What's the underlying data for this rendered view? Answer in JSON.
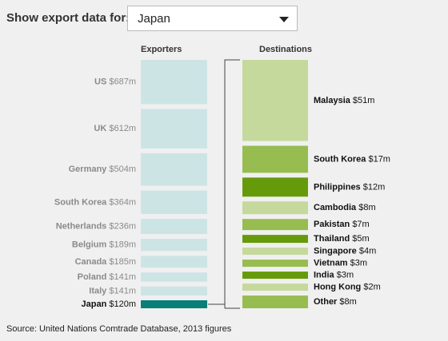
{
  "control": {
    "label": "Show export data for:",
    "selected": "Japan"
  },
  "chart_data": {
    "type": "bar",
    "exporters_label": "Exporters",
    "destinations_label": "Destinations",
    "selected_exporter": "Japan",
    "exporters": [
      {
        "name": "US",
        "value_label": "$687m",
        "value": 687
      },
      {
        "name": "UK",
        "value_label": "$612m",
        "value": 612
      },
      {
        "name": "Germany",
        "value_label": "$504m",
        "value": 504
      },
      {
        "name": "South Korea",
        "value_label": "$364m",
        "value": 364
      },
      {
        "name": "Netherlands",
        "value_label": "$236m",
        "value": 236
      },
      {
        "name": "Belgium",
        "value_label": "$189m",
        "value": 189
      },
      {
        "name": "Canada",
        "value_label": "$185m",
        "value": 185
      },
      {
        "name": "Poland",
        "value_label": "$141m",
        "value": 141
      },
      {
        "name": "Italy",
        "value_label": "$141m",
        "value": 141
      },
      {
        "name": "Japan",
        "value_label": "$120m",
        "value": 120
      }
    ],
    "destinations": [
      {
        "name": "Malaysia",
        "value_label": "$51m",
        "value": 51,
        "color": "#c5d99c"
      },
      {
        "name": "South Korea",
        "value_label": "$17m",
        "value": 17,
        "color": "#97bc50"
      },
      {
        "name": "Philippines",
        "value_label": "$12m",
        "value": 12,
        "color": "#659b0a"
      },
      {
        "name": "Cambodia",
        "value_label": "$8m",
        "value": 8,
        "color": "#c5d99c"
      },
      {
        "name": "Pakistan",
        "value_label": "$7m",
        "value": 7,
        "color": "#97bc50"
      },
      {
        "name": "Thailand",
        "value_label": "$5m",
        "value": 5,
        "color": "#659b0a"
      },
      {
        "name": "Singapore",
        "value_label": "$4m",
        "value": 4,
        "color": "#c5d99c"
      },
      {
        "name": "Vietnam",
        "value_label": "$3m",
        "value": 3,
        "color": "#97bc50"
      },
      {
        "name": "India",
        "value_label": "$3m",
        "value": 3,
        "color": "#659b0a"
      },
      {
        "name": "Hong Kong",
        "value_label": "$2m",
        "value": 2,
        "color": "#c5d99c"
      },
      {
        "name": "Other",
        "value_label": "$8m",
        "value": 8,
        "color": "#97bc50"
      }
    ],
    "colors": {
      "exporter": "#cde4e5",
      "exporter_selected": "#0a7f78",
      "exporter_name": "#8a8a8a",
      "exporter_name_selected": "#111111",
      "bracket": "#444444"
    }
  },
  "source": "Source: United Nations Comtrade Database, 2013 figures"
}
